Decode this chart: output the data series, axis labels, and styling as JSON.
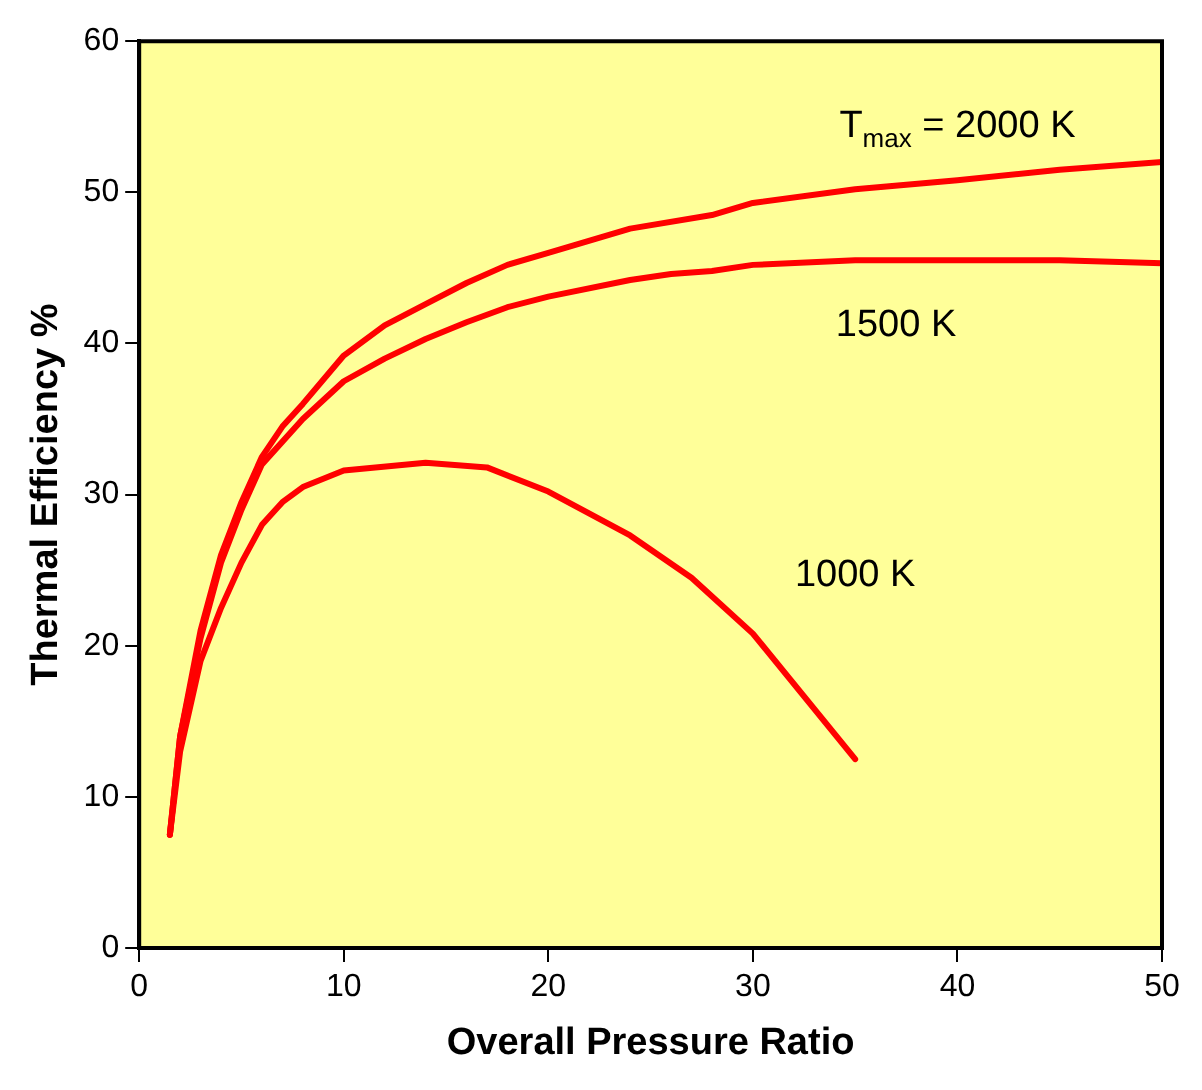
{
  "chart_data": {
    "type": "line",
    "xlabel": "Overall Pressure Ratio",
    "ylabel": "Thermal Efficiency %",
    "xlim": [
      0,
      50
    ],
    "ylim": [
      0,
      60
    ],
    "xticks": [
      0,
      10,
      20,
      30,
      40,
      50
    ],
    "yticks": [
      0,
      10,
      20,
      30,
      40,
      50,
      60
    ],
    "grid": false,
    "legend": false,
    "marker": "none",
    "line_style": "solid",
    "series": [
      {
        "color": "#ff0000",
        "x": [
          1.5,
          2,
          3,
          4,
          5,
          6,
          7,
          8,
          10,
          12,
          14,
          16,
          18,
          20,
          24,
          28,
          30,
          35,
          40,
          45,
          50
        ],
        "values": [
          7.5,
          14,
          21,
          26,
          29.5,
          32.5,
          34.5,
          36,
          39.2,
          41.2,
          42.6,
          44,
          45.2,
          46,
          47.6,
          48.5,
          49.3,
          50.2,
          50.8,
          51.5,
          52
        ]
      },
      {
        "color": "#ff0000",
        "x": [
          1.5,
          2,
          3,
          4,
          5,
          6,
          8,
          10,
          12,
          14,
          16,
          18,
          20,
          24,
          26,
          28,
          30,
          35,
          40,
          45,
          50
        ],
        "values": [
          7.5,
          14,
          20.5,
          25.5,
          29,
          32,
          35,
          37.5,
          39,
          40.3,
          41.4,
          42.4,
          43.1,
          44.2,
          44.6,
          44.8,
          45.2,
          45.5,
          45.5,
          45.5,
          45.3
        ]
      },
      {
        "color": "#ff0000",
        "x": [
          1.5,
          2,
          3,
          4,
          5,
          6,
          7,
          8,
          10,
          14,
          17,
          20,
          24,
          27,
          30,
          35
        ],
        "values": [
          7.5,
          13,
          19,
          22.5,
          25.5,
          28,
          29.5,
          30.5,
          31.6,
          32.1,
          31.8,
          30.2,
          27.3,
          24.5,
          20.8,
          12.5
        ]
      }
    ],
    "annotations": [
      "T$_{max}$ = 2000 K",
      "1500 K",
      "1000 K"
    ]
  }
}
